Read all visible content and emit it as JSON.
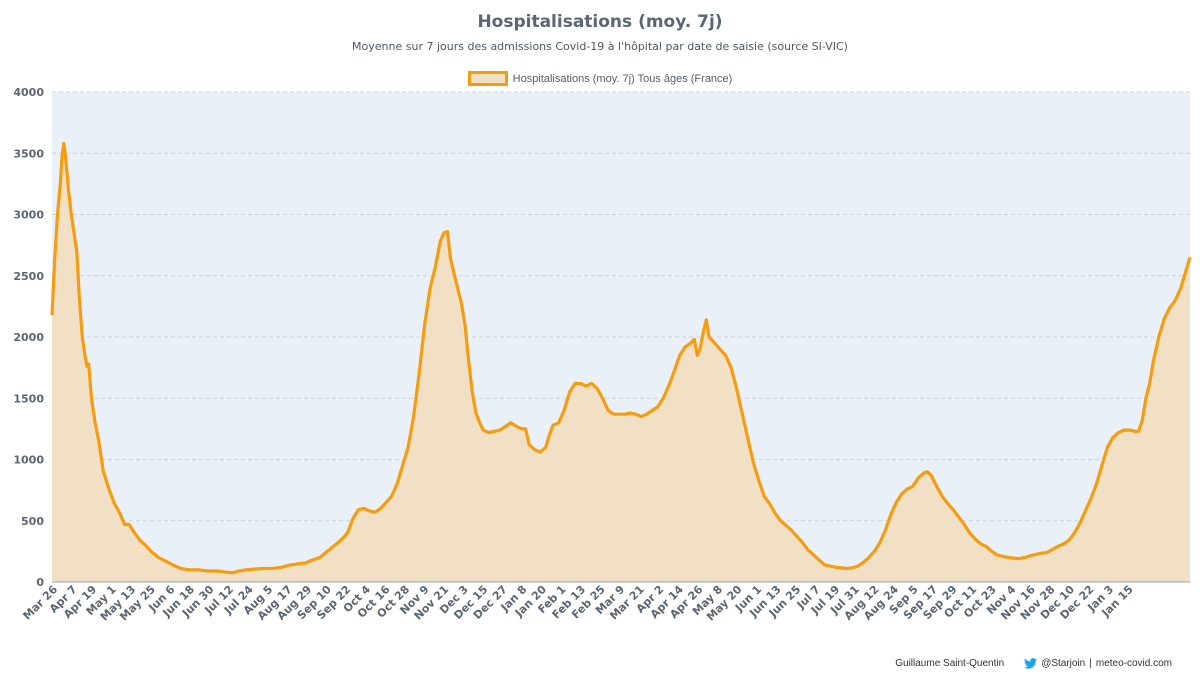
{
  "chart_data": {
    "type": "area",
    "title": "Hospitalisations (moy. 7j)",
    "subtitle": "Moyenne sur 7 jours des admissions Covid-19 à l'hôpital par date de saisie (source SI-VIC)",
    "legend": "Hospitalisations (moy. 7j) Tous âges (France)",
    "legend_position": "top-center",
    "ylim": [
      0,
      4000
    ],
    "yticks": [
      0,
      500,
      1000,
      1500,
      2000,
      2500,
      3000,
      3500,
      4000
    ],
    "grid": true,
    "xlabels": [
      "Mar 26",
      "Apr 7",
      "Apr 19",
      "May 1",
      "May 13",
      "May 25",
      "Jun 6",
      "Jun 18",
      "Jun 30",
      "Jul 12",
      "Jul 24",
      "Aug 5",
      "Aug 17",
      "Aug 29",
      "Sep 10",
      "Sep 22",
      "Oct 4",
      "Oct 16",
      "Oct 28",
      "Nov 9",
      "Nov 21",
      "Dec 3",
      "Dec 15",
      "Dec 27",
      "Jan 8",
      "Jan 20",
      "Feb 1",
      "Feb 13",
      "Feb 25",
      "Mar 9",
      "Mar 21",
      "Apr 2",
      "Apr 14",
      "Apr 26",
      "May 8",
      "May 20",
      "Jun 1",
      "Jun 13",
      "Jun 25",
      "Jul 7",
      "Jul 19",
      "Jul 31",
      "Aug 12",
      "Aug 24",
      "Sep 5",
      "Sep 17",
      "Sep 29",
      "Oct 11",
      "Oct 23",
      "Nov 4",
      "Nov 16",
      "Nov 28",
      "Dec 10",
      "Dec 22",
      "Jan 3",
      "Jan 15"
    ],
    "x_index_range": [
      0,
      58.6
    ],
    "series": [
      {
        "name": "Hospitalisations (moy. 7j) Tous âges (France)",
        "color": "#f59c10",
        "fill": "#f1e0c5",
        "points": [
          [
            0,
            2180
          ],
          [
            0.15,
            2650
          ],
          [
            0.3,
            3000
          ],
          [
            0.45,
            3250
          ],
          [
            0.55,
            3480
          ],
          [
            0.65,
            3580
          ],
          [
            0.75,
            3450
          ],
          [
            0.9,
            3200
          ],
          [
            1.05,
            3000
          ],
          [
            1.2,
            2850
          ],
          [
            1.35,
            2700
          ],
          [
            1.5,
            2300
          ],
          [
            1.65,
            2000
          ],
          [
            1.8,
            1850
          ],
          [
            1.9,
            1760
          ],
          [
            2.0,
            1780
          ],
          [
            2.15,
            1500
          ],
          [
            2.35,
            1300
          ],
          [
            2.55,
            1150
          ],
          [
            2.8,
            900
          ],
          [
            3.1,
            760
          ],
          [
            3.4,
            640
          ],
          [
            3.7,
            560
          ],
          [
            3.95,
            470
          ],
          [
            4.2,
            470
          ],
          [
            4.5,
            400
          ],
          [
            4.8,
            340
          ],
          [
            5.1,
            300
          ],
          [
            5.4,
            250
          ],
          [
            5.8,
            200
          ],
          [
            6.2,
            170
          ],
          [
            6.6,
            140
          ],
          [
            7.0,
            110
          ],
          [
            7.5,
            100
          ],
          [
            8.0,
            100
          ],
          [
            8.5,
            90
          ],
          [
            9.0,
            90
          ],
          [
            9.5,
            80
          ],
          [
            9.8,
            75
          ],
          [
            10.2,
            90
          ],
          [
            10.6,
            100
          ],
          [
            11.0,
            105
          ],
          [
            11.5,
            110
          ],
          [
            12.0,
            110
          ],
          [
            12.5,
            120
          ],
          [
            13.0,
            140
          ],
          [
            13.5,
            150
          ],
          [
            13.8,
            155
          ],
          [
            14.2,
            180
          ],
          [
            14.6,
            200
          ],
          [
            15.0,
            250
          ],
          [
            15.4,
            300
          ],
          [
            15.8,
            350
          ],
          [
            16.1,
            400
          ],
          [
            16.4,
            520
          ],
          [
            16.7,
            590
          ],
          [
            17.0,
            600
          ],
          [
            17.3,
            580
          ],
          [
            17.6,
            570
          ],
          [
            17.9,
            600
          ],
          [
            18.2,
            650
          ],
          [
            18.5,
            700
          ],
          [
            18.8,
            800
          ],
          [
            19.1,
            950
          ],
          [
            19.4,
            1100
          ],
          [
            19.7,
            1350
          ],
          [
            20.0,
            1700
          ],
          [
            20.3,
            2100
          ],
          [
            20.6,
            2400
          ],
          [
            20.9,
            2580
          ],
          [
            21.15,
            2780
          ],
          [
            21.35,
            2850
          ],
          [
            21.55,
            2860
          ],
          [
            21.7,
            2650
          ],
          [
            21.9,
            2520
          ],
          [
            22.1,
            2400
          ],
          [
            22.3,
            2280
          ],
          [
            22.5,
            2100
          ],
          [
            22.7,
            1800
          ],
          [
            22.9,
            1550
          ],
          [
            23.1,
            1380
          ],
          [
            23.3,
            1300
          ],
          [
            23.5,
            1240
          ],
          [
            23.8,
            1220
          ],
          [
            24.1,
            1230
          ],
          [
            24.4,
            1240
          ],
          [
            24.7,
            1270
          ],
          [
            25.0,
            1300
          ],
          [
            25.3,
            1270
          ],
          [
            25.6,
            1250
          ],
          [
            25.8,
            1250
          ],
          [
            26.0,
            1120
          ],
          [
            26.3,
            1080
          ],
          [
            26.6,
            1060
          ],
          [
            26.9,
            1100
          ],
          [
            27.1,
            1200
          ],
          [
            27.3,
            1280
          ],
          [
            27.6,
            1300
          ],
          [
            27.9,
            1400
          ],
          [
            28.2,
            1550
          ],
          [
            28.5,
            1620
          ],
          [
            28.8,
            1620
          ],
          [
            29.1,
            1600
          ],
          [
            29.4,
            1620
          ],
          [
            29.7,
            1580
          ],
          [
            30.0,
            1500
          ],
          [
            30.3,
            1400
          ],
          [
            30.6,
            1370
          ],
          [
            30.9,
            1370
          ],
          [
            31.2,
            1370
          ],
          [
            31.5,
            1380
          ],
          [
            31.8,
            1370
          ],
          [
            32.1,
            1350
          ],
          [
            32.4,
            1370
          ],
          [
            32.7,
            1400
          ],
          [
            33.0,
            1430
          ],
          [
            33.3,
            1500
          ],
          [
            33.6,
            1600
          ],
          [
            33.9,
            1720
          ],
          [
            34.2,
            1850
          ],
          [
            34.5,
            1920
          ],
          [
            34.8,
            1950
          ],
          [
            35.0,
            1980
          ],
          [
            35.15,
            1850
          ],
          [
            35.3,
            1900
          ],
          [
            35.5,
            2050
          ],
          [
            35.65,
            2140
          ],
          [
            35.8,
            2000
          ],
          [
            36.1,
            1950
          ],
          [
            36.4,
            1900
          ],
          [
            36.7,
            1850
          ],
          [
            37.0,
            1750
          ],
          [
            37.3,
            1580
          ],
          [
            37.6,
            1380
          ],
          [
            37.9,
            1180
          ],
          [
            38.2,
            980
          ],
          [
            38.5,
            830
          ],
          [
            38.8,
            700
          ],
          [
            39.1,
            640
          ],
          [
            39.4,
            560
          ],
          [
            39.7,
            500
          ],
          [
            40.0,
            460
          ],
          [
            40.3,
            420
          ],
          [
            40.6,
            370
          ],
          [
            40.9,
            320
          ],
          [
            41.2,
            260
          ],
          [
            41.5,
            220
          ],
          [
            41.8,
            180
          ],
          [
            42.1,
            140
          ],
          [
            42.4,
            130
          ],
          [
            42.7,
            120
          ],
          [
            43.0,
            115
          ],
          [
            43.3,
            110
          ],
          [
            43.6,
            115
          ],
          [
            43.9,
            130
          ],
          [
            44.2,
            160
          ],
          [
            44.5,
            200
          ],
          [
            44.8,
            250
          ],
          [
            45.1,
            320
          ],
          [
            45.4,
            420
          ],
          [
            45.7,
            550
          ],
          [
            46.0,
            650
          ],
          [
            46.3,
            720
          ],
          [
            46.6,
            760
          ],
          [
            46.9,
            780
          ],
          [
            47.2,
            850
          ],
          [
            47.5,
            890
          ],
          [
            47.7,
            900
          ],
          [
            47.9,
            870
          ],
          [
            48.2,
            780
          ],
          [
            48.5,
            700
          ],
          [
            48.8,
            640
          ],
          [
            49.1,
            590
          ],
          [
            49.4,
            530
          ],
          [
            49.7,
            470
          ],
          [
            50.0,
            400
          ],
          [
            50.3,
            350
          ],
          [
            50.6,
            310
          ],
          [
            50.9,
            290
          ],
          [
            51.2,
            250
          ],
          [
            51.5,
            220
          ],
          [
            51.8,
            210
          ],
          [
            52.1,
            200
          ],
          [
            52.4,
            195
          ],
          [
            52.7,
            190
          ],
          [
            53.0,
            200
          ],
          [
            53.3,
            215
          ],
          [
            53.6,
            225
          ],
          [
            53.9,
            235
          ],
          [
            54.2,
            240
          ],
          [
            54.5,
            265
          ],
          [
            54.8,
            290
          ],
          [
            55.1,
            310
          ],
          [
            55.4,
            340
          ],
          [
            55.7,
            400
          ],
          [
            56.0,
            480
          ],
          [
            56.3,
            580
          ],
          [
            56.6,
            680
          ],
          [
            56.9,
            800
          ],
          [
            57.2,
            950
          ],
          [
            57.5,
            1100
          ],
          [
            57.8,
            1180
          ],
          [
            58.1,
            1220
          ],
          [
            58.4,
            1240
          ],
          [
            58.7,
            1240
          ],
          [
            59.0,
            1230
          ],
          [
            59.2,
            1230
          ],
          [
            59.4,
            1320
          ],
          [
            59.6,
            1500
          ],
          [
            59.8,
            1620
          ],
          [
            60.0,
            1800
          ],
          [
            60.3,
            2000
          ],
          [
            60.6,
            2150
          ],
          [
            60.9,
            2240
          ],
          [
            61.2,
            2300
          ],
          [
            61.5,
            2400
          ],
          [
            61.8,
            2550
          ],
          [
            62.0,
            2650
          ]
        ]
      }
    ]
  },
  "footer": {
    "author": "Guillaume Saint-Quentin",
    "twitter_handle": "@Starjoin",
    "separator": "|",
    "site": "meteo-covid.com"
  }
}
